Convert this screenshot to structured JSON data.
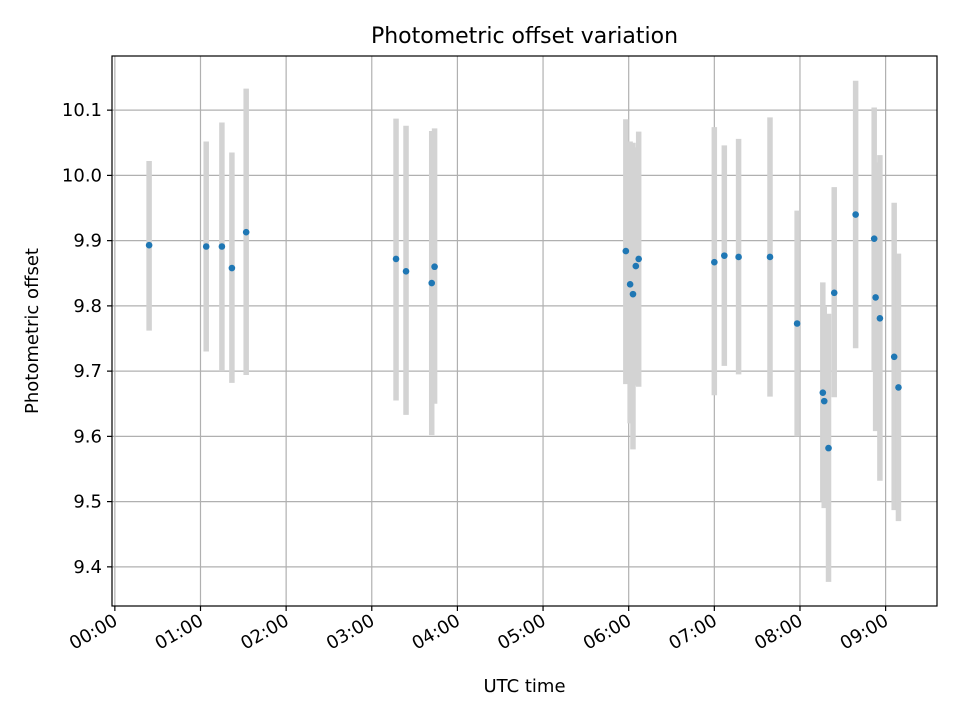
{
  "chart_data": {
    "type": "scatter",
    "title": "Photometric offset variation",
    "xlabel": "UTC time",
    "ylabel": "Photometric offset",
    "x_unit": "UTC time (HH:MM)",
    "xlim": [
      "23:58",
      "09:36"
    ],
    "ylim": [
      9.34,
      10.183
    ],
    "grid": true,
    "x_ticks": [
      "00:00",
      "01:00",
      "02:00",
      "03:00",
      "04:00",
      "05:00",
      "06:00",
      "07:00",
      "08:00",
      "09:00"
    ],
    "y_ticks": [
      "9.4",
      "9.5",
      "9.6",
      "9.7",
      "9.8",
      "9.9",
      "10.0",
      "10.1"
    ],
    "colors": {
      "marker": "#1f77b4",
      "errorbar": "#d3d3d3",
      "grid": "#b0b0b0"
    },
    "series": [
      {
        "points": [
          {
            "x": "00:24",
            "y": 9.893,
            "ylow": 9.762,
            "yhigh": 10.022
          },
          {
            "x": "01:04",
            "y": 9.891,
            "ylow": 9.73,
            "yhigh": 10.052
          },
          {
            "x": "01:15",
            "y": 9.891,
            "ylow": 9.7,
            "yhigh": 10.081
          },
          {
            "x": "01:22",
            "y": 9.858,
            "ylow": 9.682,
            "yhigh": 10.035
          },
          {
            "x": "01:32",
            "y": 9.913,
            "ylow": 9.694,
            "yhigh": 10.133
          },
          {
            "x": "03:17",
            "y": 9.872,
            "ylow": 9.655,
            "yhigh": 10.087
          },
          {
            "x": "03:24",
            "y": 9.853,
            "ylow": 9.633,
            "yhigh": 10.076
          },
          {
            "x": "03:42",
            "y": 9.835,
            "ylow": 9.602,
            "yhigh": 10.068
          },
          {
            "x": "03:44",
            "y": 9.86,
            "ylow": 9.65,
            "yhigh": 10.072
          },
          {
            "x": "05:58",
            "y": 9.884,
            "ylow": 9.68,
            "yhigh": 10.086
          },
          {
            "x": "06:01",
            "y": 9.833,
            "ylow": 9.62,
            "yhigh": 10.052
          },
          {
            "x": "06:03",
            "y": 9.818,
            "ylow": 9.58,
            "yhigh": 10.05
          },
          {
            "x": "06:05",
            "y": 9.861,
            "ylow": 9.678,
            "yhigh": 10.043
          },
          {
            "x": "06:07",
            "y": 9.872,
            "ylow": 9.676,
            "yhigh": 10.067
          },
          {
            "x": "07:00",
            "y": 9.867,
            "ylow": 9.663,
            "yhigh": 10.074
          },
          {
            "x": "07:07",
            "y": 9.877,
            "ylow": 9.708,
            "yhigh": 10.046
          },
          {
            "x": "07:17",
            "y": 9.875,
            "ylow": 9.695,
            "yhigh": 10.056
          },
          {
            "x": "07:39",
            "y": 9.875,
            "ylow": 9.661,
            "yhigh": 10.089
          },
          {
            "x": "07:58",
            "y": 9.773,
            "ylow": 9.6,
            "yhigh": 9.946
          },
          {
            "x": "08:16",
            "y": 9.667,
            "ylow": 9.5,
            "yhigh": 9.836
          },
          {
            "x": "08:17",
            "y": 9.654,
            "ylow": 9.49,
            "yhigh": 9.8
          },
          {
            "x": "08:20",
            "y": 9.582,
            "ylow": 9.377,
            "yhigh": 9.788
          },
          {
            "x": "08:24",
            "y": 9.82,
            "ylow": 9.66,
            "yhigh": 9.982
          },
          {
            "x": "08:39",
            "y": 9.94,
            "ylow": 9.735,
            "yhigh": 10.145
          },
          {
            "x": "08:52",
            "y": 9.903,
            "ylow": 9.7,
            "yhigh": 10.104
          },
          {
            "x": "08:53",
            "y": 9.813,
            "ylow": 9.608,
            "yhigh": 10.02
          },
          {
            "x": "08:56",
            "y": 9.781,
            "ylow": 9.532,
            "yhigh": 10.031
          },
          {
            "x": "09:06",
            "y": 9.722,
            "ylow": 9.487,
            "yhigh": 9.958
          },
          {
            "x": "09:09",
            "y": 9.675,
            "ylow": 9.47,
            "yhigh": 9.88
          }
        ]
      }
    ]
  }
}
